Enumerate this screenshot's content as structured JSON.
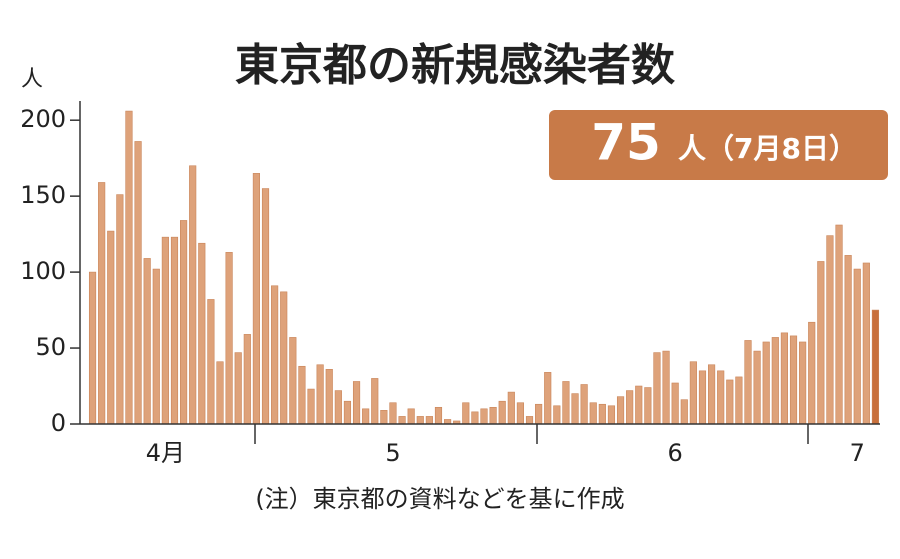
{
  "chart_data": {
    "type": "bar",
    "title": "東京都の新規感染者数",
    "y_unit": "人",
    "callout": [
      "75",
      "人（7月8日）"
    ],
    "note": "(注）東京都の資料などを基に作成",
    "categories": [
      null,
      null,
      null,
      null,
      null,
      null,
      null,
      null,
      "4月",
      null,
      null,
      null,
      null,
      null,
      null,
      null,
      null,
      null,
      null,
      null,
      null,
      null,
      null,
      null,
      null,
      null,
      null,
      null,
      null,
      null,
      null,
      null,
      null,
      "5",
      null,
      null,
      null,
      null,
      null,
      null,
      null,
      null,
      null,
      null,
      null,
      null,
      null,
      null,
      null,
      null,
      null,
      null,
      null,
      null,
      null,
      null,
      null,
      null,
      null,
      null,
      null,
      null,
      null,
      null,
      "6",
      null,
      null,
      null,
      null,
      null,
      null,
      null,
      null,
      null,
      null,
      null,
      null,
      null,
      null,
      null,
      null,
      null,
      null,
      null,
      "7",
      null,
      null
    ],
    "values": [
      100,
      159,
      127,
      151,
      206,
      186,
      109,
      102,
      123,
      123,
      134,
      170,
      119,
      82,
      41,
      113,
      47,
      59,
      165,
      155,
      91,
      87,
      57,
      38,
      23,
      39,
      36,
      22,
      15,
      28,
      10,
      30,
      9,
      14,
      5,
      10,
      5,
      5,
      11,
      3,
      2,
      14,
      8,
      10,
      11,
      15,
      21,
      14,
      5,
      13,
      34,
      12,
      28,
      20,
      26,
      14,
      13,
      12,
      18,
      22,
      25,
      24,
      47,
      48,
      27,
      16,
      41,
      35,
      39,
      35,
      29,
      31,
      55,
      48,
      54,
      57,
      60,
      58,
      54,
      67,
      107,
      124,
      131,
      111,
      102,
      106,
      75
    ],
    "color": "#dea27a",
    "last_color": "#c8703c",
    "callout_color": "#c87a48",
    "ylim": [
      0,
      210
    ],
    "yticks": [
      0,
      50,
      100,
      150,
      200
    ]
  }
}
